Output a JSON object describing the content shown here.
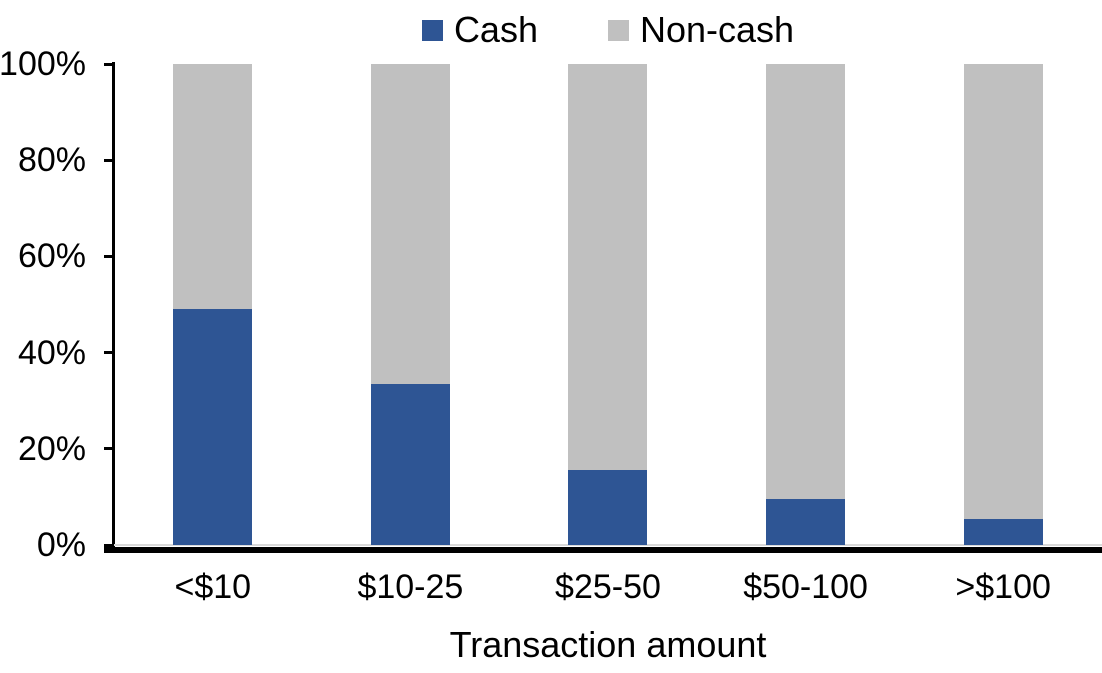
{
  "chart_data": {
    "type": "bar",
    "stacked": true,
    "percent_stacked": true,
    "title": "",
    "xlabel": "Transaction amount",
    "ylabel": "",
    "ylim": [
      0,
      100
    ],
    "grid": false,
    "legend_position": "top",
    "categories": [
      "<$10",
      "$10-25",
      "$25-50",
      "$50-100",
      ">$100"
    ],
    "series": [
      {
        "name": "Cash",
        "color": "#2E5594",
        "values": [
          49,
          33.5,
          15.5,
          9.5,
          5.5
        ]
      },
      {
        "name": "Non-cash",
        "color": "#C0C0C0",
        "values": [
          51,
          66.5,
          84.5,
          90.5,
          94.5
        ]
      }
    ],
    "yticks": [
      "0%",
      "20%",
      "40%",
      "60%",
      "80%",
      "100%"
    ],
    "ytick_values": [
      0,
      20,
      40,
      60,
      80,
      100
    ]
  },
  "colors": {
    "axis": "#000000",
    "zero_gridline": "#D9D9D9",
    "background": "#FFFFFF",
    "text": "#000000"
  }
}
